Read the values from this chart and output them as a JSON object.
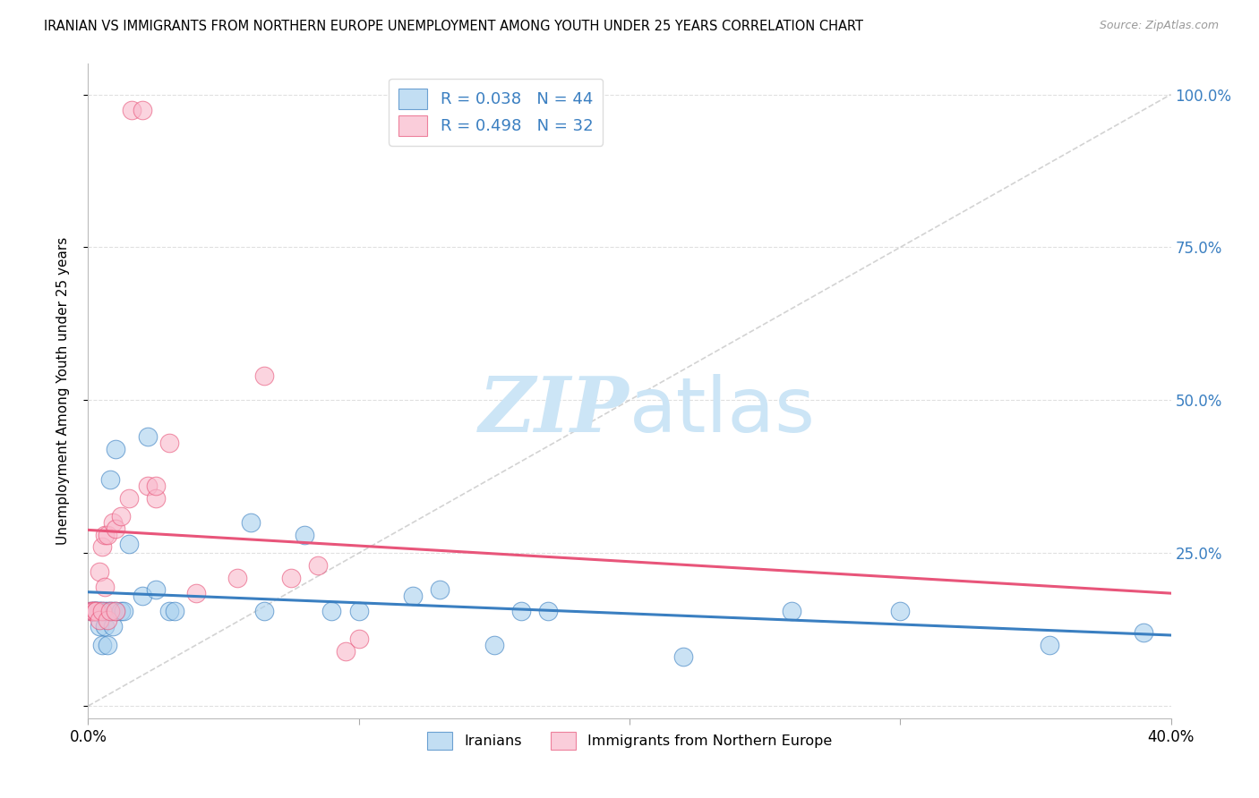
{
  "title": "IRANIAN VS IMMIGRANTS FROM NORTHERN EUROPE UNEMPLOYMENT AMONG YOUTH UNDER 25 YEARS CORRELATION CHART",
  "source_text": "Source: ZipAtlas.com",
  "ylabel": "Unemployment Among Youth under 25 years",
  "xlim": [
    0.0,
    0.4
  ],
  "ylim": [
    -0.02,
    1.05
  ],
  "iranians_R": 0.038,
  "iranians_N": 44,
  "northern_europe_R": 0.498,
  "northern_europe_N": 32,
  "color_iranians": "#a8d0ee",
  "color_northern_europe": "#f9b8cb",
  "color_trendline_iranians": "#3a7fc1",
  "color_trendline_northern_europe": "#e8557a",
  "color_diagonal": "#c8c8c8",
  "background_color": "#ffffff",
  "grid_color": "#e0e0e0",
  "watermark_color": "#cce5f6",
  "legend_label_iranians": "Iranians",
  "legend_label_northern_europe": "Immigrants from Northern Europe",
  "iranians_x": [
    0.001,
    0.002,
    0.002,
    0.003,
    0.003,
    0.003,
    0.004,
    0.004,
    0.004,
    0.005,
    0.005,
    0.006,
    0.006,
    0.007,
    0.007,
    0.008,
    0.008,
    0.009,
    0.009,
    0.01,
    0.01,
    0.012,
    0.013,
    0.015,
    0.02,
    0.022,
    0.025,
    0.03,
    0.032,
    0.06,
    0.065,
    0.08,
    0.09,
    0.1,
    0.12,
    0.13,
    0.15,
    0.16,
    0.17,
    0.22,
    0.26,
    0.3,
    0.355,
    0.39
  ],
  "iranians_y": [
    0.155,
    0.155,
    0.155,
    0.155,
    0.155,
    0.155,
    0.155,
    0.13,
    0.155,
    0.155,
    0.1,
    0.13,
    0.155,
    0.155,
    0.1,
    0.37,
    0.155,
    0.155,
    0.13,
    0.155,
    0.42,
    0.155,
    0.155,
    0.265,
    0.18,
    0.44,
    0.19,
    0.155,
    0.155,
    0.3,
    0.155,
    0.28,
    0.155,
    0.155,
    0.18,
    0.19,
    0.1,
    0.155,
    0.155,
    0.08,
    0.155,
    0.155,
    0.1,
    0.12
  ],
  "northern_europe_x": [
    0.001,
    0.002,
    0.002,
    0.003,
    0.003,
    0.004,
    0.004,
    0.005,
    0.005,
    0.006,
    0.006,
    0.007,
    0.007,
    0.008,
    0.009,
    0.01,
    0.01,
    0.012,
    0.015,
    0.016,
    0.02,
    0.022,
    0.025,
    0.025,
    0.03,
    0.04,
    0.055,
    0.065,
    0.075,
    0.085,
    0.095,
    0.1
  ],
  "northern_europe_y": [
    0.155,
    0.155,
    0.155,
    0.155,
    0.155,
    0.14,
    0.22,
    0.155,
    0.26,
    0.195,
    0.28,
    0.14,
    0.28,
    0.155,
    0.3,
    0.155,
    0.29,
    0.31,
    0.34,
    0.975,
    0.975,
    0.36,
    0.34,
    0.36,
    0.43,
    0.185,
    0.21,
    0.54,
    0.21,
    0.23,
    0.09,
    0.11
  ]
}
